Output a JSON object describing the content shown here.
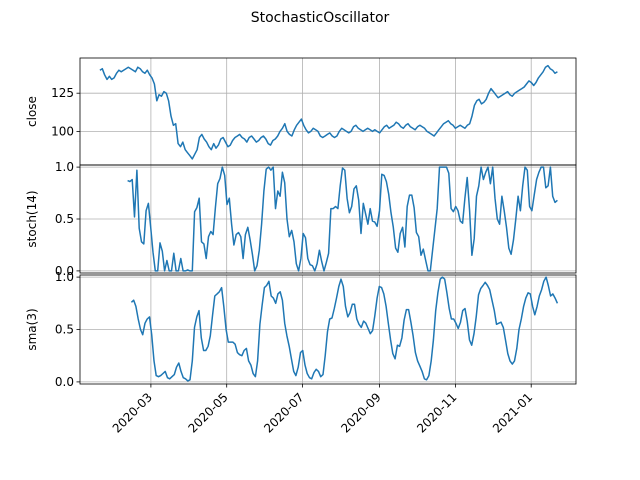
{
  "chart_data": {
    "type": "line",
    "title": "StochasticOscillator",
    "x_start": "2020-01-20",
    "x_end": "2021-01-22",
    "xlim": [
      "2020-01-04",
      "2021-02-06"
    ],
    "x_ticks": [
      "2020-03",
      "2020-05",
      "2020-07",
      "2020-09",
      "2020-11",
      "2021-01"
    ],
    "line_color": "#1f77b4",
    "grid": true,
    "panels": [
      {
        "ylabel": "close",
        "ylim": [
          78,
          148
        ],
        "yticks": [
          "100",
          "125"
        ],
        "values": [
          140,
          141,
          137,
          134,
          136,
          134,
          135,
          138,
          140,
          139,
          140,
          141,
          142,
          141,
          140,
          139,
          142,
          141,
          139,
          138,
          140,
          137,
          135,
          131,
          120,
          124,
          123,
          126,
          125,
          120,
          110,
          104,
          105,
          92,
          90,
          93,
          88,
          86,
          84,
          82,
          85,
          88,
          96,
          98,
          95,
          93,
          90,
          88,
          92,
          89,
          91,
          95,
          96,
          93,
          90,
          91,
          94,
          96,
          97,
          98,
          96,
          95,
          93,
          96,
          97,
          95,
          93,
          94,
          96,
          97,
          95,
          92,
          91,
          94,
          95,
          97,
          100,
          102,
          105,
          100,
          98,
          97,
          101,
          104,
          106,
          108,
          104,
          101,
          99,
          100,
          102,
          101,
          100,
          97,
          96,
          97,
          98,
          99,
          97,
          96,
          97,
          100,
          102,
          101,
          100,
          99,
          100,
          103,
          104,
          102,
          101,
          100,
          101,
          102,
          101,
          100,
          101,
          100,
          99,
          101,
          103,
          104,
          102,
          103,
          104,
          106,
          105,
          103,
          102,
          104,
          105,
          103,
          102,
          101,
          103,
          104,
          103,
          102,
          100,
          99,
          98,
          97,
          99,
          101,
          103,
          105,
          106,
          107,
          105,
          104,
          102,
          103,
          104,
          103,
          102,
          104,
          105,
          110,
          117,
          120,
          121,
          118,
          119,
          121,
          125,
          128,
          126,
          124,
          122,
          123,
          124,
          125,
          126,
          124,
          123,
          125,
          126,
          127,
          128,
          129,
          131,
          133,
          132,
          130,
          132,
          135,
          137,
          139,
          142,
          143,
          141,
          140,
          138,
          139
        ]
      },
      {
        "ylabel": "stoch(14)",
        "ylim": [
          -0.02,
          1.02
        ],
        "yticks": [
          "0.0",
          "0.5",
          "1.0"
        ],
        "values": [
          null,
          null,
          null,
          null,
          null,
          null,
          null,
          null,
          null,
          null,
          null,
          null,
          0.87,
          0.86,
          0.88,
          0.52,
          0.97,
          0.41,
          0.28,
          0.26,
          0.58,
          0.65,
          0.42,
          0.18,
          0.0,
          0.0,
          0.27,
          0.19,
          0.0,
          0.1,
          0.0,
          0.0,
          0.17,
          0.0,
          0.0,
          0.12,
          0.0,
          0.0,
          0.01,
          0.0,
          0.0,
          0.57,
          0.61,
          0.7,
          0.28,
          0.26,
          0.12,
          0.33,
          0.38,
          0.35,
          0.61,
          0.84,
          0.89,
          1.0,
          0.92,
          0.64,
          0.7,
          0.45,
          0.25,
          0.35,
          0.37,
          0.33,
          0.12,
          0.35,
          0.42,
          0.3,
          0.16,
          0.0,
          0.05,
          0.2,
          0.45,
          0.77,
          0.98,
          1.0,
          0.97,
          1.0,
          0.6,
          0.77,
          0.72,
          0.95,
          0.85,
          0.5,
          0.33,
          0.39,
          0.28,
          0.07,
          0.0,
          0.12,
          0.36,
          0.32,
          0.12,
          0.06,
          0.05,
          0.0,
          0.07,
          0.2,
          0.09,
          0.0,
          0.08,
          0.17,
          0.6,
          0.6,
          0.62,
          0.6,
          0.82,
          0.99,
          0.97,
          0.7,
          0.56,
          0.62,
          0.79,
          0.82,
          0.68,
          0.36,
          0.65,
          0.55,
          0.45,
          0.6,
          0.48,
          0.47,
          0.43,
          0.58,
          0.93,
          0.92,
          0.86,
          0.74,
          0.56,
          0.42,
          0.22,
          0.18,
          0.36,
          0.42,
          0.23,
          0.62,
          0.73,
          0.73,
          0.61,
          0.37,
          0.33,
          0.15,
          0.21,
          0.1,
          0.0,
          0.0,
          0.2,
          0.4,
          0.6,
          1.0,
          1.0,
          1.0,
          1.0,
          0.94,
          0.6,
          0.57,
          0.62,
          0.58,
          0.48,
          0.46,
          0.7,
          0.9,
          0.58,
          0.15,
          0.31,
          0.72,
          0.82,
          1.0,
          0.88,
          0.95,
          1.0,
          0.84,
          1.0,
          0.7,
          0.5,
          0.45,
          0.72,
          0.58,
          0.42,
          0.22,
          0.16,
          0.3,
          0.5,
          0.72,
          0.58,
          0.82,
          1.0,
          0.97,
          0.62,
          0.58,
          0.73,
          0.88,
          0.95,
          1.0,
          1.0,
          0.8,
          0.82,
          1.0,
          0.72,
          0.66,
          0.68
        ]
      },
      {
        "ylabel": "sma(3)",
        "ylim": [
          -0.02,
          1.02
        ],
        "yticks": [
          "0.0",
          "0.5",
          "1.0"
        ],
        "values": [
          null,
          null,
          null,
          null,
          null,
          null,
          null,
          null,
          null,
          null,
          null,
          null,
          null,
          null,
          0.76,
          0.78,
          0.72,
          0.6,
          0.5,
          0.45,
          0.56,
          0.6,
          0.62,
          0.45,
          0.2,
          0.06,
          0.05,
          0.06,
          0.08,
          0.1,
          0.04,
          0.03,
          0.05,
          0.07,
          0.14,
          0.18,
          0.1,
          0.04,
          0.03,
          0.01,
          0.02,
          0.2,
          0.52,
          0.62,
          0.68,
          0.42,
          0.3,
          0.3,
          0.34,
          0.44,
          0.64,
          0.82,
          0.84,
          0.86,
          0.9,
          0.72,
          0.5,
          0.38,
          0.38,
          0.38,
          0.36,
          0.28,
          0.26,
          0.25,
          0.3,
          0.32,
          0.2,
          0.16,
          0.08,
          0.05,
          0.2,
          0.55,
          0.73,
          0.9,
          0.92,
          0.96,
          0.82,
          0.8,
          0.75,
          0.84,
          0.86,
          0.78,
          0.56,
          0.44,
          0.34,
          0.22,
          0.1,
          0.06,
          0.14,
          0.28,
          0.3,
          0.16,
          0.08,
          0.04,
          0.03,
          0.09,
          0.12,
          0.1,
          0.05,
          0.07,
          0.25,
          0.48,
          0.6,
          0.61,
          0.7,
          0.8,
          0.91,
          0.98,
          0.91,
          0.72,
          0.62,
          0.66,
          0.74,
          0.74,
          0.6,
          0.55,
          0.52,
          0.58,
          0.56,
          0.51,
          0.46,
          0.49,
          0.63,
          0.8,
          0.91,
          0.9,
          0.84,
          0.72,
          0.56,
          0.4,
          0.27,
          0.22,
          0.35,
          0.34,
          0.42,
          0.59,
          0.69,
          0.69,
          0.57,
          0.44,
          0.28,
          0.2,
          0.15,
          0.1,
          0.03,
          0.02,
          0.06,
          0.2,
          0.4,
          0.68,
          0.85,
          0.98,
          1.0,
          0.98,
          0.85,
          0.7,
          0.6,
          0.6,
          0.56,
          0.51,
          0.57,
          0.68,
          0.7,
          0.58,
          0.4,
          0.35,
          0.46,
          0.62,
          0.83,
          0.89,
          0.92,
          0.95,
          0.92,
          0.88,
          0.78,
          0.68,
          0.55,
          0.56,
          0.57,
          0.52,
          0.4,
          0.27,
          0.2,
          0.17,
          0.2,
          0.32,
          0.5,
          0.6,
          0.72,
          0.8,
          0.85,
          0.84,
          0.72,
          0.64,
          0.72,
          0.82,
          0.88,
          0.96,
          1.0,
          0.92,
          0.82,
          0.84,
          0.8,
          0.75
        ]
      }
    ]
  }
}
